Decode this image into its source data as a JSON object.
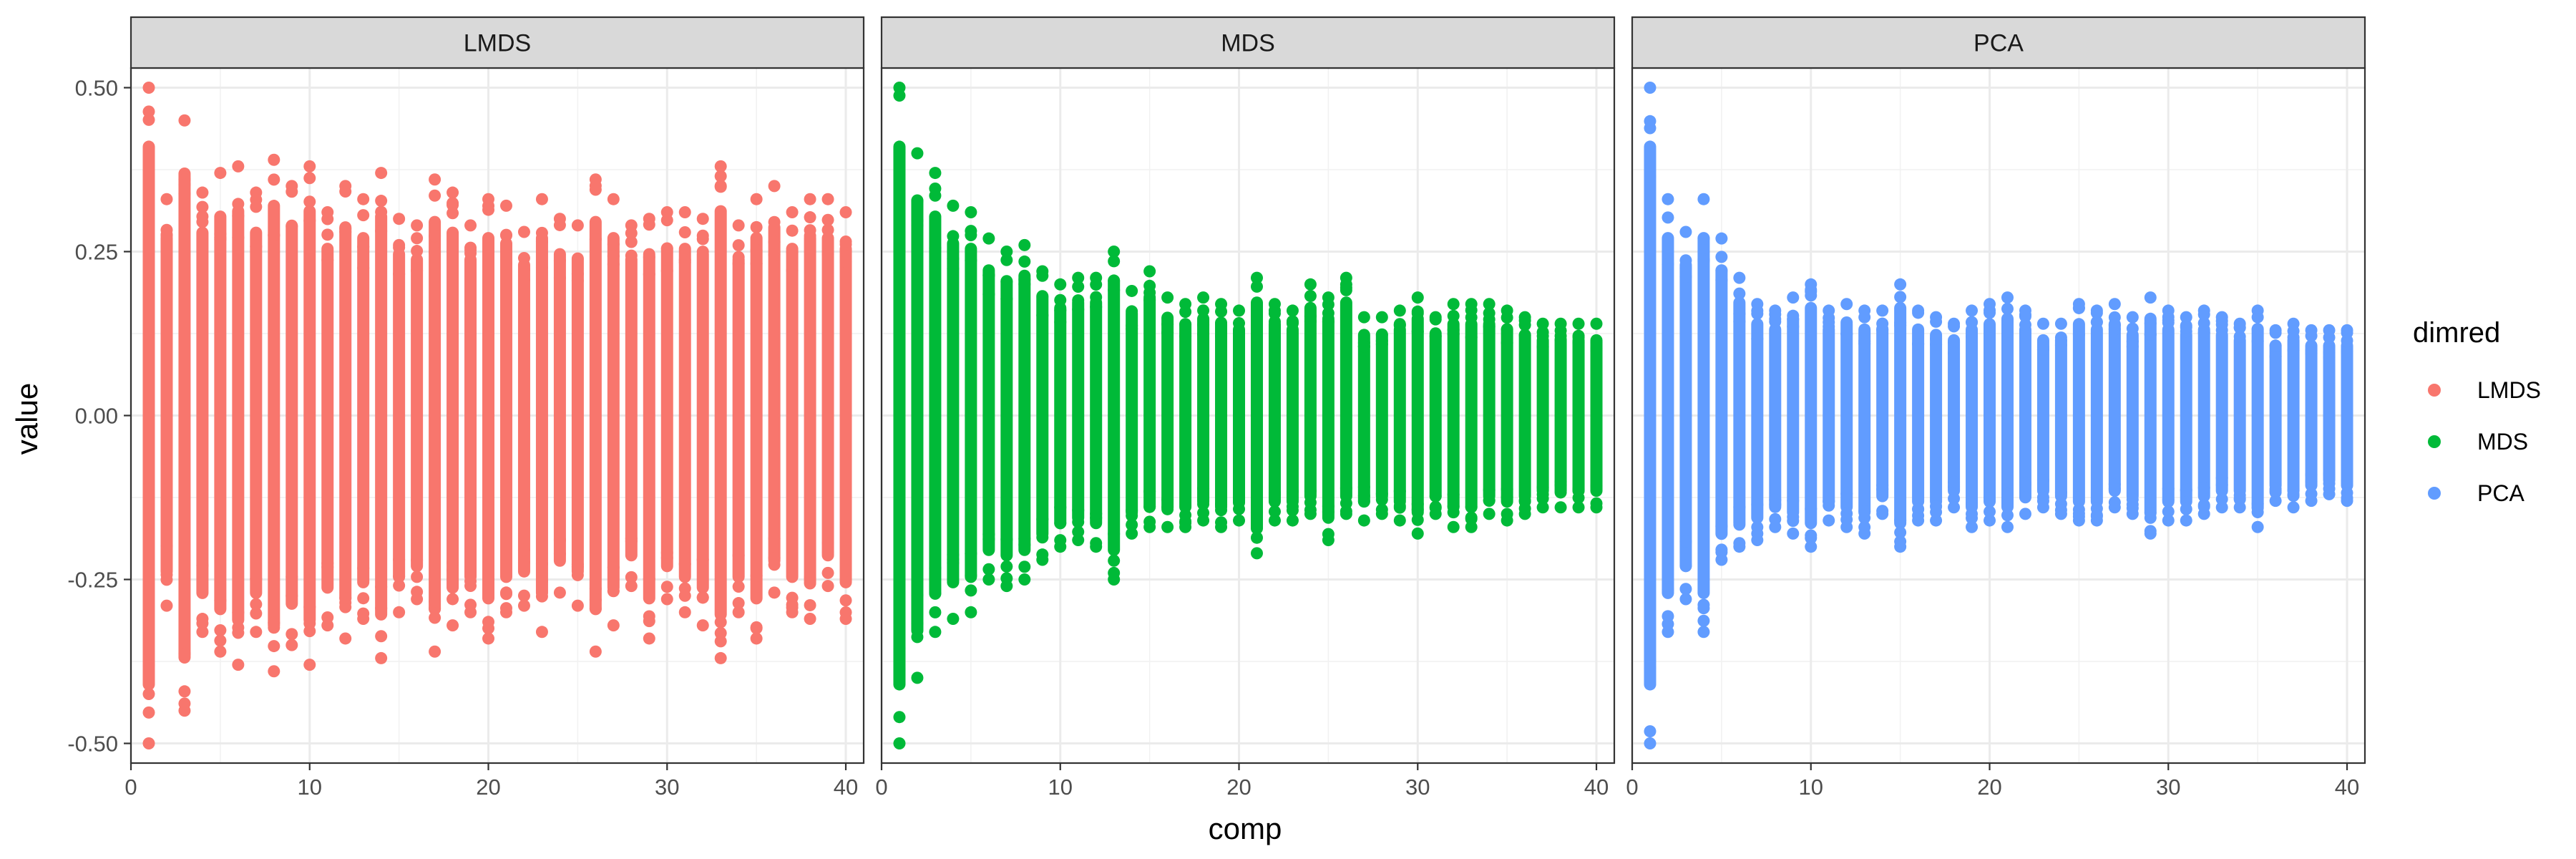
{
  "chart_data": {
    "type": "scatter",
    "facet_by": "dimred",
    "xlabel": "comp",
    "ylabel": "value",
    "xlim": [
      0,
      41
    ],
    "ylim": [
      -0.53,
      0.53
    ],
    "x_ticks": [
      0,
      10,
      20,
      30,
      40
    ],
    "x_tick_labels": [
      "0",
      "10",
      "20",
      "30",
      "40"
    ],
    "y_ticks": [
      -0.5,
      -0.25,
      0,
      0.25,
      0.5
    ],
    "y_tick_labels": [
      "-0.50",
      "-0.25",
      "0.00",
      "0.25",
      "0.50"
    ],
    "grid": true,
    "legend": {
      "title": "dimred",
      "placement": "right",
      "entries": [
        "LMDS",
        "MDS",
        "PCA"
      ]
    },
    "panels": [
      {
        "name": "LMDS",
        "color": "#F8766D",
        "series": [
          {
            "comp": 1,
            "min": -0.5,
            "max": 0.5
          },
          {
            "comp": 2,
            "min": -0.29,
            "max": 0.33
          },
          {
            "comp": 3,
            "min": -0.45,
            "max": 0.45
          },
          {
            "comp": 4,
            "min": -0.33,
            "max": 0.34
          },
          {
            "comp": 5,
            "min": -0.36,
            "max": 0.37
          },
          {
            "comp": 6,
            "min": -0.38,
            "max": 0.38
          },
          {
            "comp": 7,
            "min": -0.33,
            "max": 0.34
          },
          {
            "comp": 8,
            "min": -0.39,
            "max": 0.39
          },
          {
            "comp": 9,
            "min": -0.35,
            "max": 0.35
          },
          {
            "comp": 10,
            "min": -0.38,
            "max": 0.38
          },
          {
            "comp": 11,
            "min": -0.32,
            "max": 0.31
          },
          {
            "comp": 12,
            "min": -0.34,
            "max": 0.35
          },
          {
            "comp": 13,
            "min": -0.31,
            "max": 0.33
          },
          {
            "comp": 14,
            "min": -0.37,
            "max": 0.37
          },
          {
            "comp": 15,
            "min": -0.3,
            "max": 0.3
          },
          {
            "comp": 16,
            "min": -0.28,
            "max": 0.29
          },
          {
            "comp": 17,
            "min": -0.36,
            "max": 0.36
          },
          {
            "comp": 18,
            "min": -0.32,
            "max": 0.34
          },
          {
            "comp": 19,
            "min": -0.3,
            "max": 0.29
          },
          {
            "comp": 20,
            "min": -0.34,
            "max": 0.33
          },
          {
            "comp": 21,
            "min": -0.3,
            "max": 0.32
          },
          {
            "comp": 22,
            "min": -0.29,
            "max": 0.28
          },
          {
            "comp": 23,
            "min": -0.33,
            "max": 0.33
          },
          {
            "comp": 24,
            "min": -0.27,
            "max": 0.3
          },
          {
            "comp": 25,
            "min": -0.29,
            "max": 0.29
          },
          {
            "comp": 26,
            "min": -0.36,
            "max": 0.36
          },
          {
            "comp": 27,
            "min": -0.32,
            "max": 0.33
          },
          {
            "comp": 28,
            "min": -0.26,
            "max": 0.29
          },
          {
            "comp": 29,
            "min": -0.34,
            "max": 0.3
          },
          {
            "comp": 30,
            "min": -0.28,
            "max": 0.31
          },
          {
            "comp": 31,
            "min": -0.3,
            "max": 0.31
          },
          {
            "comp": 32,
            "min": -0.32,
            "max": 0.3
          },
          {
            "comp": 33,
            "min": -0.37,
            "max": 0.38
          },
          {
            "comp": 34,
            "min": -0.3,
            "max": 0.29
          },
          {
            "comp": 35,
            "min": -0.34,
            "max": 0.33
          },
          {
            "comp": 36,
            "min": -0.27,
            "max": 0.35
          },
          {
            "comp": 37,
            "min": -0.3,
            "max": 0.31
          },
          {
            "comp": 38,
            "min": -0.31,
            "max": 0.33
          },
          {
            "comp": 39,
            "min": -0.26,
            "max": 0.33
          },
          {
            "comp": 40,
            "min": -0.31,
            "max": 0.31
          }
        ]
      },
      {
        "name": "MDS",
        "color": "#00BA38",
        "series": [
          {
            "comp": 1,
            "min": -0.5,
            "max": 0.5
          },
          {
            "comp": 2,
            "min": -0.4,
            "max": 0.4
          },
          {
            "comp": 3,
            "min": -0.33,
            "max": 0.37
          },
          {
            "comp": 4,
            "min": -0.31,
            "max": 0.32
          },
          {
            "comp": 5,
            "min": -0.3,
            "max": 0.31
          },
          {
            "comp": 6,
            "min": -0.25,
            "max": 0.27
          },
          {
            "comp": 7,
            "min": -0.26,
            "max": 0.25
          },
          {
            "comp": 8,
            "min": -0.25,
            "max": 0.26
          },
          {
            "comp": 9,
            "min": -0.22,
            "max": 0.22
          },
          {
            "comp": 10,
            "min": -0.2,
            "max": 0.2
          },
          {
            "comp": 11,
            "min": -0.19,
            "max": 0.21
          },
          {
            "comp": 12,
            "min": -0.2,
            "max": 0.21
          },
          {
            "comp": 13,
            "min": -0.25,
            "max": 0.25
          },
          {
            "comp": 14,
            "min": -0.18,
            "max": 0.19
          },
          {
            "comp": 15,
            "min": -0.17,
            "max": 0.22
          },
          {
            "comp": 16,
            "min": -0.17,
            "max": 0.18
          },
          {
            "comp": 17,
            "min": -0.17,
            "max": 0.17
          },
          {
            "comp": 18,
            "min": -0.16,
            "max": 0.18
          },
          {
            "comp": 19,
            "min": -0.17,
            "max": 0.17
          },
          {
            "comp": 20,
            "min": -0.16,
            "max": 0.16
          },
          {
            "comp": 21,
            "min": -0.21,
            "max": 0.21
          },
          {
            "comp": 22,
            "min": -0.16,
            "max": 0.17
          },
          {
            "comp": 23,
            "min": -0.16,
            "max": 0.16
          },
          {
            "comp": 24,
            "min": -0.15,
            "max": 0.2
          },
          {
            "comp": 25,
            "min": -0.19,
            "max": 0.18
          },
          {
            "comp": 26,
            "min": -0.15,
            "max": 0.21
          },
          {
            "comp": 27,
            "min": -0.16,
            "max": 0.15
          },
          {
            "comp": 28,
            "min": -0.15,
            "max": 0.15
          },
          {
            "comp": 29,
            "min": -0.16,
            "max": 0.16
          },
          {
            "comp": 30,
            "min": -0.18,
            "max": 0.18
          },
          {
            "comp": 31,
            "min": -0.15,
            "max": 0.15
          },
          {
            "comp": 32,
            "min": -0.17,
            "max": 0.17
          },
          {
            "comp": 33,
            "min": -0.17,
            "max": 0.17
          },
          {
            "comp": 34,
            "min": -0.15,
            "max": 0.17
          },
          {
            "comp": 35,
            "min": -0.16,
            "max": 0.16
          },
          {
            "comp": 36,
            "min": -0.15,
            "max": 0.15
          },
          {
            "comp": 37,
            "min": -0.14,
            "max": 0.14
          },
          {
            "comp": 38,
            "min": -0.14,
            "max": 0.14
          },
          {
            "comp": 39,
            "min": -0.14,
            "max": 0.14
          },
          {
            "comp": 40,
            "min": -0.14,
            "max": 0.14
          }
        ]
      },
      {
        "name": "PCA",
        "color": "#619CFF",
        "series": [
          {
            "comp": 1,
            "min": -0.5,
            "max": 0.5
          },
          {
            "comp": 2,
            "min": -0.33,
            "max": 0.33
          },
          {
            "comp": 3,
            "min": -0.28,
            "max": 0.28
          },
          {
            "comp": 4,
            "min": -0.33,
            "max": 0.33
          },
          {
            "comp": 5,
            "min": -0.22,
            "max": 0.27
          },
          {
            "comp": 6,
            "min": -0.2,
            "max": 0.21
          },
          {
            "comp": 7,
            "min": -0.19,
            "max": 0.17
          },
          {
            "comp": 8,
            "min": -0.17,
            "max": 0.16
          },
          {
            "comp": 9,
            "min": -0.18,
            "max": 0.18
          },
          {
            "comp": 10,
            "min": -0.2,
            "max": 0.2
          },
          {
            "comp": 11,
            "min": -0.16,
            "max": 0.16
          },
          {
            "comp": 12,
            "min": -0.17,
            "max": 0.17
          },
          {
            "comp": 13,
            "min": -0.18,
            "max": 0.16
          },
          {
            "comp": 14,
            "min": -0.15,
            "max": 0.16
          },
          {
            "comp": 15,
            "min": -0.2,
            "max": 0.2
          },
          {
            "comp": 16,
            "min": -0.16,
            "max": 0.16
          },
          {
            "comp": 17,
            "min": -0.16,
            "max": 0.15
          },
          {
            "comp": 18,
            "min": -0.14,
            "max": 0.14
          },
          {
            "comp": 19,
            "min": -0.17,
            "max": 0.16
          },
          {
            "comp": 20,
            "min": -0.16,
            "max": 0.17
          },
          {
            "comp": 21,
            "min": -0.17,
            "max": 0.18
          },
          {
            "comp": 22,
            "min": -0.15,
            "max": 0.16
          },
          {
            "comp": 23,
            "min": -0.14,
            "max": 0.14
          },
          {
            "comp": 24,
            "min": -0.15,
            "max": 0.14
          },
          {
            "comp": 25,
            "min": -0.16,
            "max": 0.17
          },
          {
            "comp": 26,
            "min": -0.16,
            "max": 0.16
          },
          {
            "comp": 27,
            "min": -0.14,
            "max": 0.17
          },
          {
            "comp": 28,
            "min": -0.15,
            "max": 0.15
          },
          {
            "comp": 29,
            "min": -0.18,
            "max": 0.18
          },
          {
            "comp": 30,
            "min": -0.16,
            "max": 0.16
          },
          {
            "comp": 31,
            "min": -0.16,
            "max": 0.15
          },
          {
            "comp": 32,
            "min": -0.15,
            "max": 0.16
          },
          {
            "comp": 33,
            "min": -0.14,
            "max": 0.15
          },
          {
            "comp": 34,
            "min": -0.14,
            "max": 0.14
          },
          {
            "comp": 35,
            "min": -0.17,
            "max": 0.16
          },
          {
            "comp": 36,
            "min": -0.13,
            "max": 0.13
          },
          {
            "comp": 37,
            "min": -0.14,
            "max": 0.14
          },
          {
            "comp": 38,
            "min": -0.13,
            "max": 0.13
          },
          {
            "comp": 39,
            "min": -0.12,
            "max": 0.13
          },
          {
            "comp": 40,
            "min": -0.13,
            "max": 0.13
          }
        ]
      }
    ]
  }
}
